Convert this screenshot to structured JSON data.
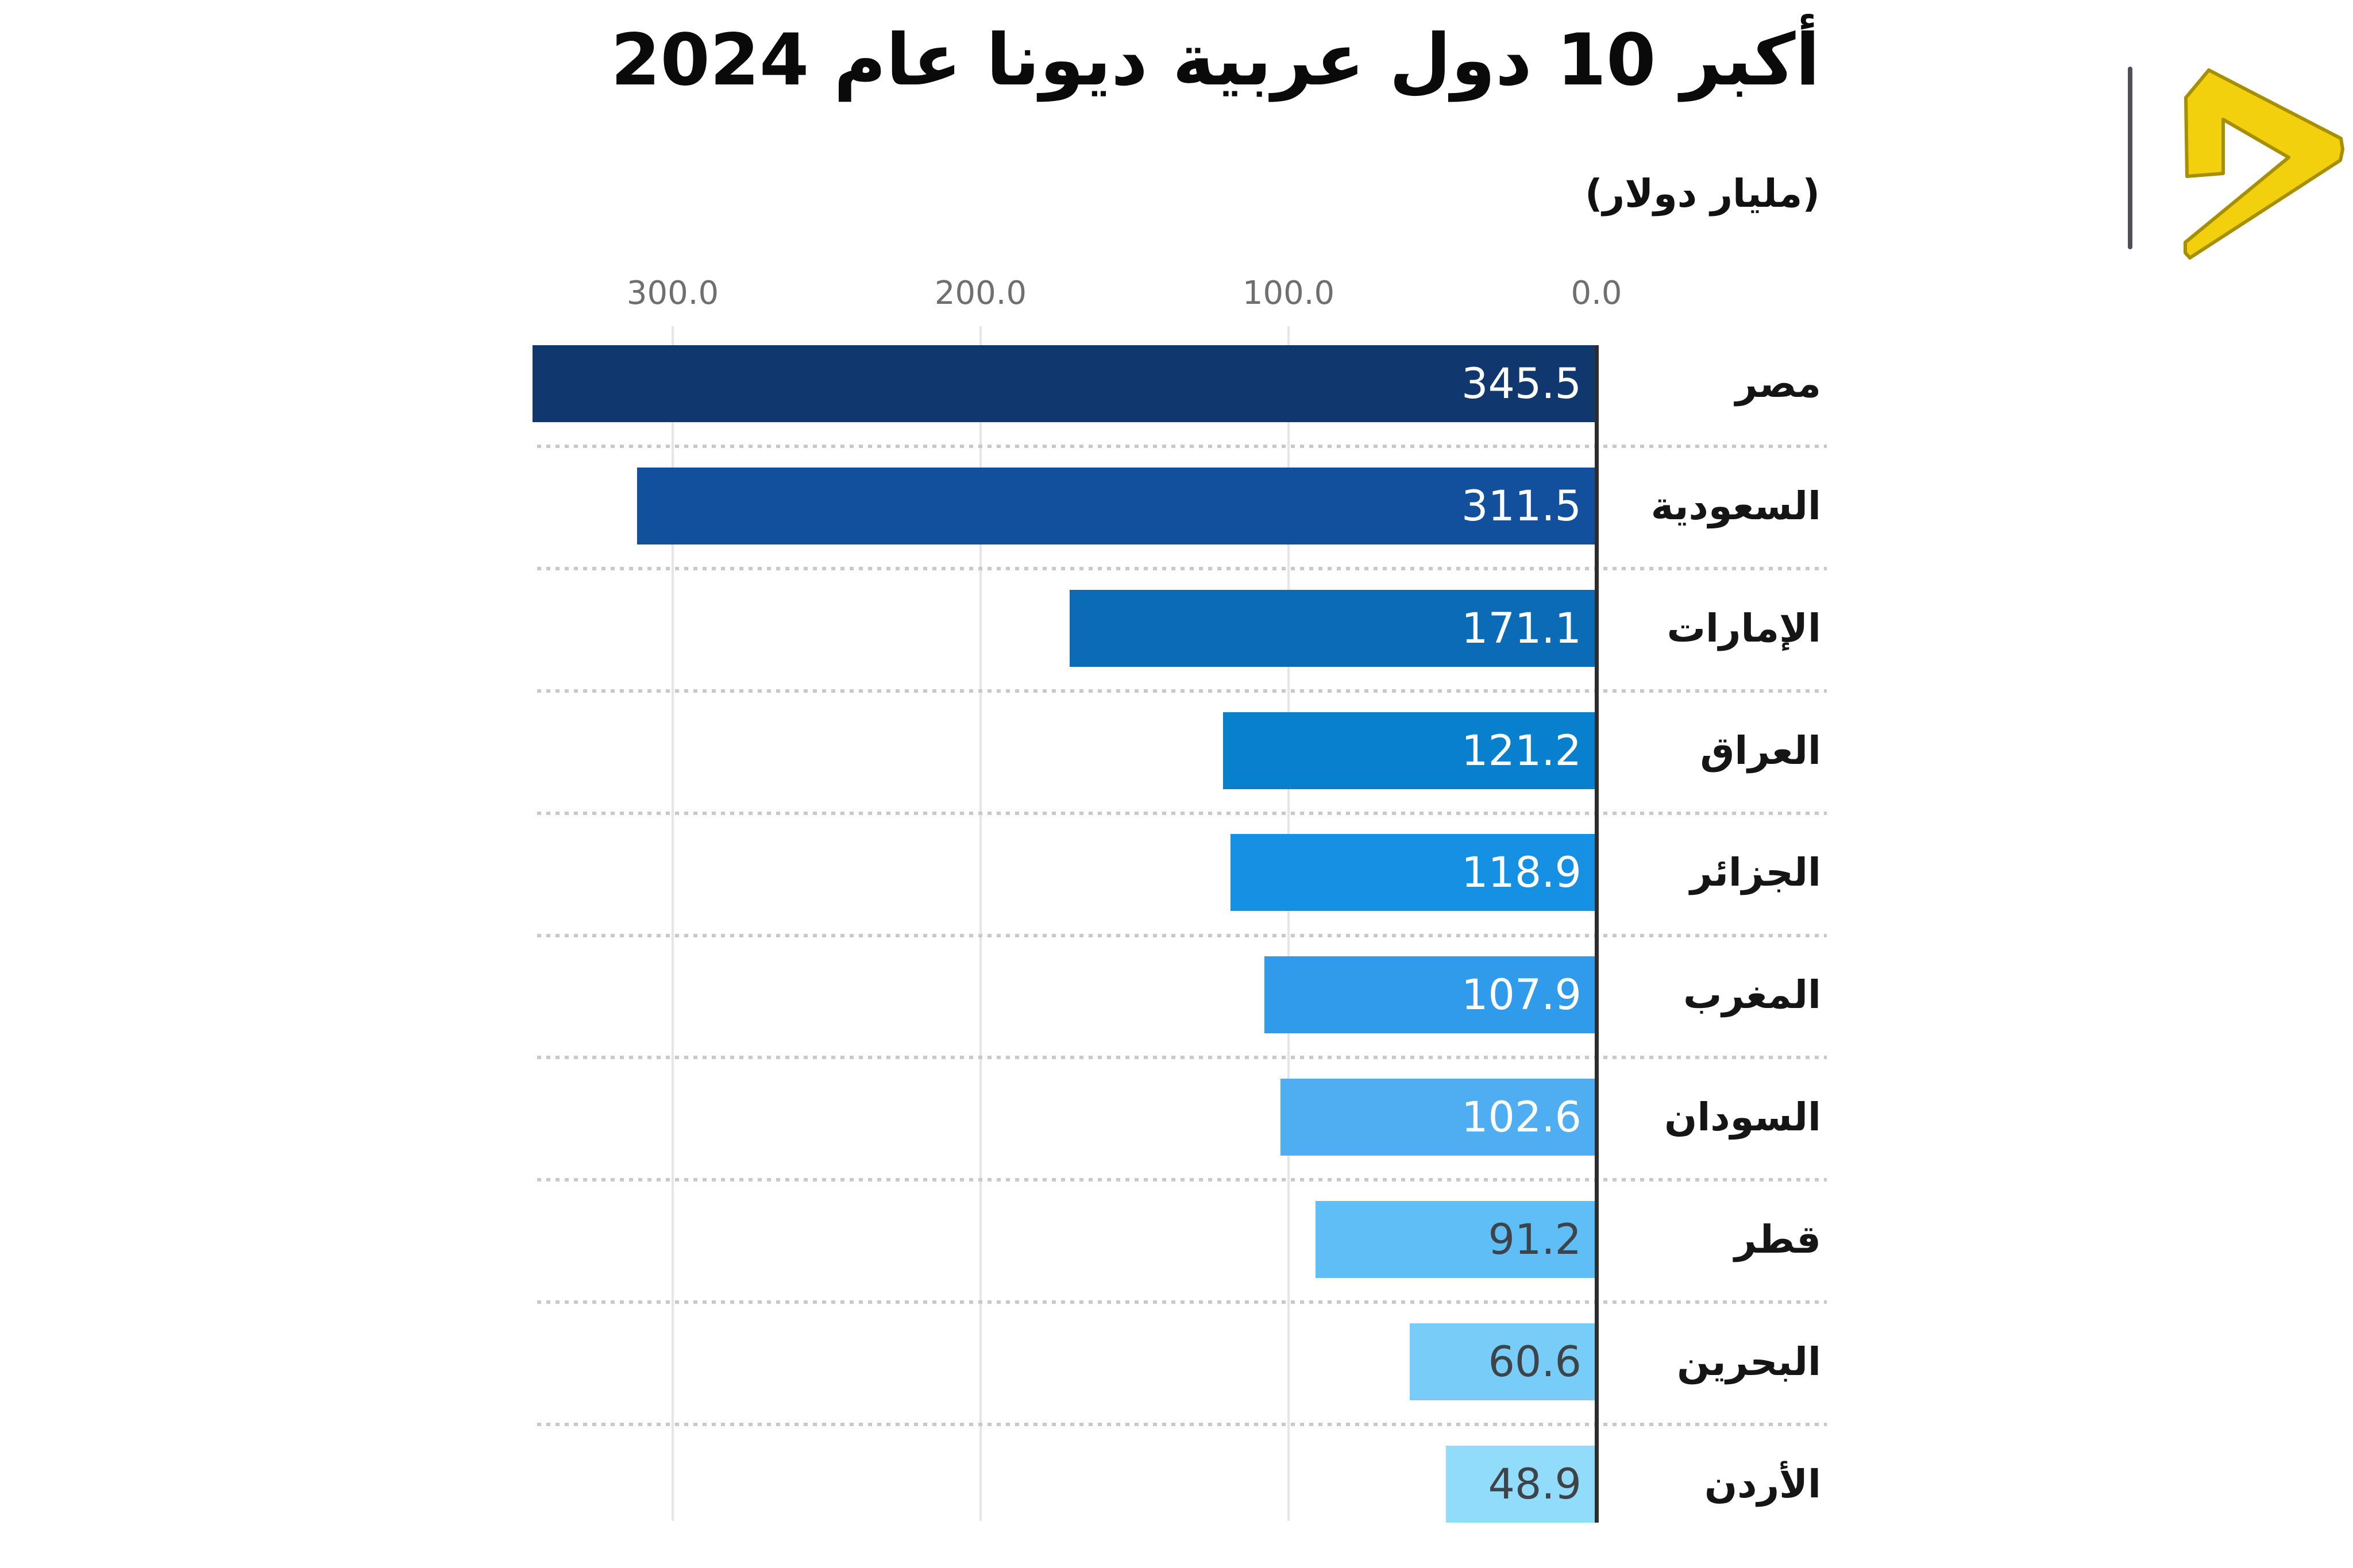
{
  "header": {
    "title": "أكبر 10 دول عربية ديونا عام 2024",
    "subtitle": "(مليار دولار)"
  },
  "brand": {
    "logo_name": "yellow-chevron-play-logo",
    "logo_color": "#f2d00e",
    "logo_outline_color": "#a68f00",
    "divider_color": "#4f5058"
  },
  "chart_data": {
    "type": "bar",
    "orientation": "horizontal-rtl",
    "title": "أكبر 10 دول عربية ديونا عام 2024",
    "unit_label": "(مليار دولار)",
    "x_axis": {
      "ticks": [
        "300.0",
        "200.0",
        "100.0",
        "0.0"
      ],
      "tick_values": [
        300,
        200,
        100,
        0
      ],
      "range": [
        0,
        350
      ],
      "reversed": true,
      "grid": true
    },
    "categories": [
      "مصر",
      "السعودية",
      "الإمارات",
      "العراق",
      "الجزائر",
      "المغرب",
      "السودان",
      "قطر",
      "البحرين",
      "الأردن"
    ],
    "values": [
      345.5,
      311.5,
      171.1,
      121.2,
      118.9,
      107.9,
      102.6,
      91.2,
      60.6,
      48.9
    ],
    "rows": [
      {
        "label": "مصر",
        "value": 345.5,
        "value_str": "345.5",
        "bar_color": "#10386e",
        "value_color": "#ffffff"
      },
      {
        "label": "السعودية",
        "value": 311.5,
        "value_str": "311.5",
        "bar_color": "#124f9c",
        "value_color": "#ffffff"
      },
      {
        "label": "الإمارات",
        "value": 171.1,
        "value_str": "171.1",
        "bar_color": "#0b6bb6",
        "value_color": "#ffffff"
      },
      {
        "label": "العراق",
        "value": 121.2,
        "value_str": "121.2",
        "bar_color": "#0980ce",
        "value_color": "#ffffff"
      },
      {
        "label": "الجزائر",
        "value": 118.9,
        "value_str": "118.9",
        "bar_color": "#1590e2",
        "value_color": "#ffffff"
      },
      {
        "label": "المغرب",
        "value": 107.9,
        "value_str": "107.9",
        "bar_color": "#2f9bea",
        "value_color": "#ffffff"
      },
      {
        "label": "السودان",
        "value": 102.6,
        "value_str": "102.6",
        "bar_color": "#4faef2",
        "value_color": "#ffffff"
      },
      {
        "label": "قطر",
        "value": 91.2,
        "value_str": "91.2",
        "bar_color": "#5fbef6",
        "value_color": "#3e4348"
      },
      {
        "label": "البحرين",
        "value": 60.6,
        "value_str": "60.6",
        "bar_color": "#77cdf8",
        "value_color": "#3e4348"
      },
      {
        "label": "الأردن",
        "value": 48.9,
        "value_str": "48.9",
        "bar_color": "#90dcfa",
        "value_color": "#3e4348"
      }
    ],
    "styles": {
      "grid_color": "#e5e5e5",
      "separator_color": "#c9c9c9",
      "axis_line_color": "#2d2d2d",
      "tick_label_color": "#6f6f6f",
      "category_label_color": "#151515"
    }
  }
}
